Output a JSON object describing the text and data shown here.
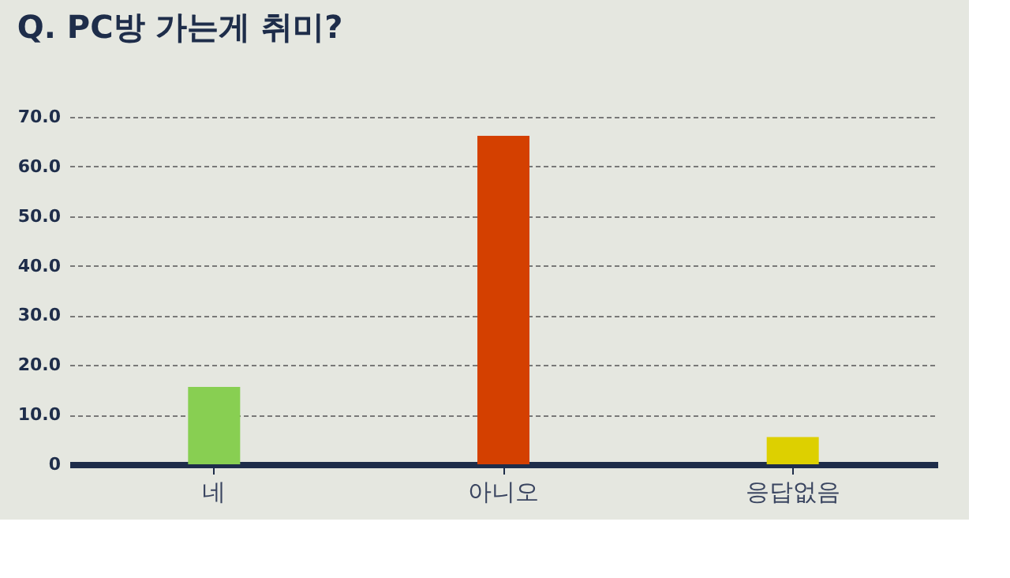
{
  "chart_data": {
    "type": "bar",
    "title": "Q. PC방 가는게 취미?",
    "categories": [
      "네",
      "아니오",
      "응답없음"
    ],
    "values": [
      15.6,
      66.2,
      5.5
    ],
    "colors": [
      "#88cf52",
      "#d44000",
      "#ddd000"
    ],
    "ylim": [
      0,
      70
    ],
    "yticks": [
      {
        "value": 0,
        "label": "0"
      },
      {
        "value": 10,
        "label": "10.0"
      },
      {
        "value": 20,
        "label": "20.0"
      },
      {
        "value": 30,
        "label": "30.0"
      },
      {
        "value": 40,
        "label": "40.0"
      },
      {
        "value": 50,
        "label": "50.0"
      },
      {
        "value": 60,
        "label": "60.0"
      },
      {
        "value": 70,
        "label": "70.0"
      }
    ],
    "grid": "y"
  }
}
